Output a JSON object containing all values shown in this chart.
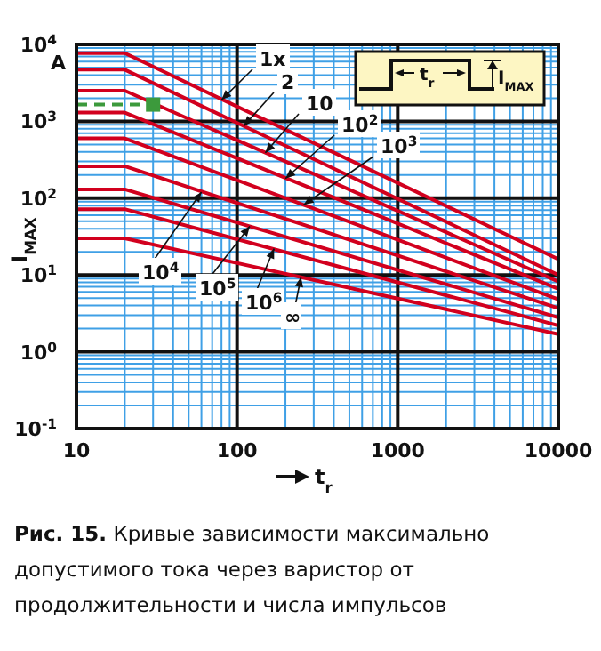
{
  "chart_data": {
    "type": "line",
    "ylabel": "I$_{MAX}$",
    "xlabel": "t$_{r}$",
    "annotations": [
      "A",
      "t$_{r}$",
      "I$_{MAX}$",
      "Рис. 15.",
      "Кривые зависимости максимально допустимого тока через варистор от продолжительности и числа импульсов",
      {
        "text": "1x",
        "x": 80,
        "y": 1900
      },
      {
        "text": "2",
        "x": 110,
        "y": 870
      },
      {
        "text": "10",
        "x": 150,
        "y": 390
      },
      {
        "text": "10$^{2}$",
        "x": 200,
        "y": 180
      },
      {
        "text": "10$^{3}$",
        "x": 260,
        "y": 82
      },
      {
        "text": "10$^{4}$",
        "x": 60,
        "y": 120
      },
      {
        "text": "10$^{5}$",
        "x": 120,
        "y": 43
      },
      {
        "text": "10$^{6}$",
        "x": 170,
        "y": 22
      },
      {
        "text": "∞",
        "x": 250,
        "y": 9.4
      }
    ],
    "log": "xy",
    "grid": true,
    "marker": "none",
    "xlim": [
      10,
      10000
    ],
    "xticks": [
      10,
      {
        "value": 20,
        "label": null
      },
      {
        "value": 30,
        "label": null
      },
      {
        "value": 40,
        "label": null
      },
      {
        "value": 50,
        "label": null
      },
      {
        "value": 60,
        "label": null
      },
      {
        "value": 70,
        "label": null
      },
      {
        "value": 80,
        "label": null
      },
      {
        "value": 90,
        "label": null
      },
      100,
      {
        "value": 200,
        "label": null
      },
      {
        "value": 300,
        "label": null
      },
      {
        "value": 400,
        "label": null
      },
      {
        "value": 500,
        "label": null
      },
      {
        "value": 600,
        "label": null
      },
      {
        "value": 700,
        "label": null
      },
      {
        "value": 800,
        "label": null
      },
      {
        "value": 900,
        "label": null
      },
      1000,
      {
        "value": 2000,
        "label": null
      },
      {
        "value": 3000,
        "label": null
      },
      {
        "value": 4000,
        "label": null
      },
      {
        "value": 5000,
        "label": null
      },
      {
        "value": 6000,
        "label": null
      },
      {
        "value": 7000,
        "label": null
      },
      {
        "value": 8000,
        "label": null
      },
      {
        "value": 9000,
        "label": null
      },
      10000
    ],
    "ylim": [
      0.1,
      10000
    ],
    "yticks": [
      {
        "value": 0.1,
        "label": "10$^{-1}$"
      },
      {
        "value": 0.2,
        "label": null
      },
      {
        "value": 0.3,
        "label": null
      },
      {
        "value": 0.4,
        "label": null
      },
      {
        "value": 0.5,
        "label": null
      },
      {
        "value": 0.6,
        "label": null
      },
      {
        "value": 0.7,
        "label": null
      },
      {
        "value": 0.8,
        "label": null
      },
      {
        "value": 0.9,
        "label": null
      },
      {
        "value": 1,
        "label": "10$^{0}$"
      },
      {
        "value": 2,
        "label": null
      },
      {
        "value": 3,
        "label": null
      },
      {
        "value": 4,
        "label": null
      },
      {
        "value": 5,
        "label": null
      },
      {
        "value": 6,
        "label": null
      },
      {
        "value": 7,
        "label": null
      },
      {
        "value": 8,
        "label": null
      },
      {
        "value": 9,
        "label": null
      },
      {
        "value": 10,
        "label": "10$^{1}$"
      },
      {
        "value": 20,
        "label": null
      },
      {
        "value": 30,
        "label": null
      },
      {
        "value": 40,
        "label": null
      },
      {
        "value": 50,
        "label": null
      },
      {
        "value": 60,
        "label": null
      },
      {
        "value": 70,
        "label": null
      },
      {
        "value": 80,
        "label": null
      },
      {
        "value": 90,
        "label": null
      },
      {
        "value": 100,
        "label": "10$^{2}$"
      },
      {
        "value": 200,
        "label": null
      },
      {
        "value": 300,
        "label": null
      },
      {
        "value": 400,
        "label": null
      },
      {
        "value": 500,
        "label": null
      },
      {
        "value": 600,
        "label": null
      },
      {
        "value": 700,
        "label": null
      },
      {
        "value": 800,
        "label": null
      },
      {
        "value": 900,
        "label": null
      },
      {
        "value": 1000,
        "label": "10$^{3}$"
      },
      {
        "value": 2000,
        "label": null
      },
      {
        "value": 3000,
        "label": null
      },
      {
        "value": 4000,
        "label": null
      },
      {
        "value": 5000,
        "label": null
      },
      {
        "value": 6000,
        "label": null
      },
      {
        "value": 7000,
        "label": null
      },
      {
        "value": 8000,
        "label": null
      },
      {
        "value": 9000,
        "label": null
      },
      {
        "value": 10000,
        "label": "10$^{4}$"
      }
    ],
    "series": [
      {
        "color": "#d2001e",
        "x": [
          10,
          20,
          10000
        ],
        "values": [
          7700,
          7700,
          16
        ]
      },
      {
        "color": "#d2001e",
        "x": [
          10,
          20,
          10000
        ],
        "values": [
          4700,
          4700,
          10
        ]
      },
      {
        "color": "#d2001e",
        "x": [
          10,
          20,
          10000
        ],
        "values": [
          2500,
          2500,
          8.2
        ]
      },
      {
        "color": "#d2001e",
        "x": [
          10,
          20,
          10000
        ],
        "values": [
          1300,
          1300,
          6.6
        ]
      },
      {
        "color": "#d2001e",
        "x": [
          10,
          20,
          10000
        ],
        "values": [
          600,
          600,
          4.8
        ]
      },
      {
        "color": "#d2001e",
        "x": [
          10,
          20,
          10000
        ],
        "values": [
          260,
          260,
          3.7
        ]
      },
      {
        "color": "#d2001e",
        "x": [
          10,
          20,
          10000
        ],
        "values": [
          130,
          130,
          2.8
        ]
      },
      {
        "color": "#d2001e",
        "x": [
          10,
          20,
          10000
        ],
        "values": [
          72,
          72,
          2.2
        ]
      },
      {
        "color": "#d2001e",
        "x": [
          10,
          20,
          10000
        ],
        "values": [
          30,
          30,
          1.7
        ]
      },
      {
        "type": "line",
        "color": "#3c9a3c",
        "line_style": "dashed",
        "x": [
          10,
          30
        ],
        "values": [
          1650,
          1650
        ]
      },
      {
        "type": "scatter",
        "color": "#3c9a3c",
        "marker": "square",
        "x": [
          30
        ],
        "values": [
          1650
        ]
      }
    ]
  }
}
